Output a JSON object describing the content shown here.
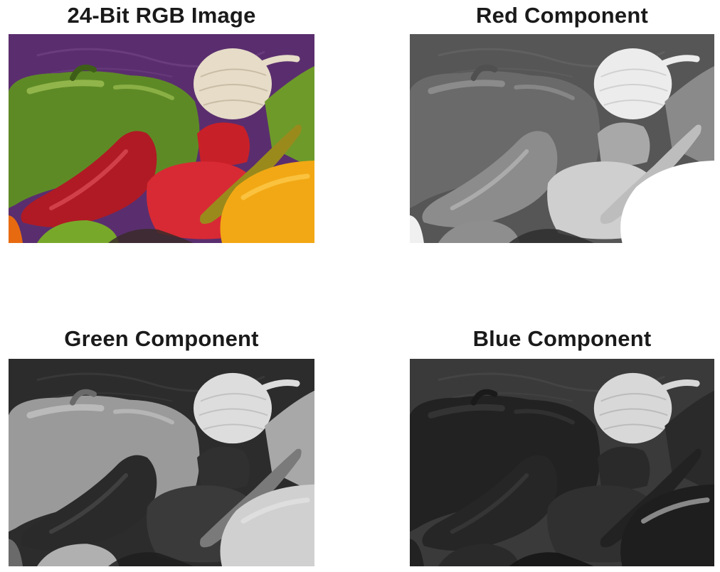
{
  "panels": [
    {
      "id": "rgb",
      "title": "24-Bit RGB Image"
    },
    {
      "id": "red",
      "title": "Red Component"
    },
    {
      "id": "green",
      "title": "Green Component"
    },
    {
      "id": "blue",
      "title": "Blue Component"
    }
  ]
}
